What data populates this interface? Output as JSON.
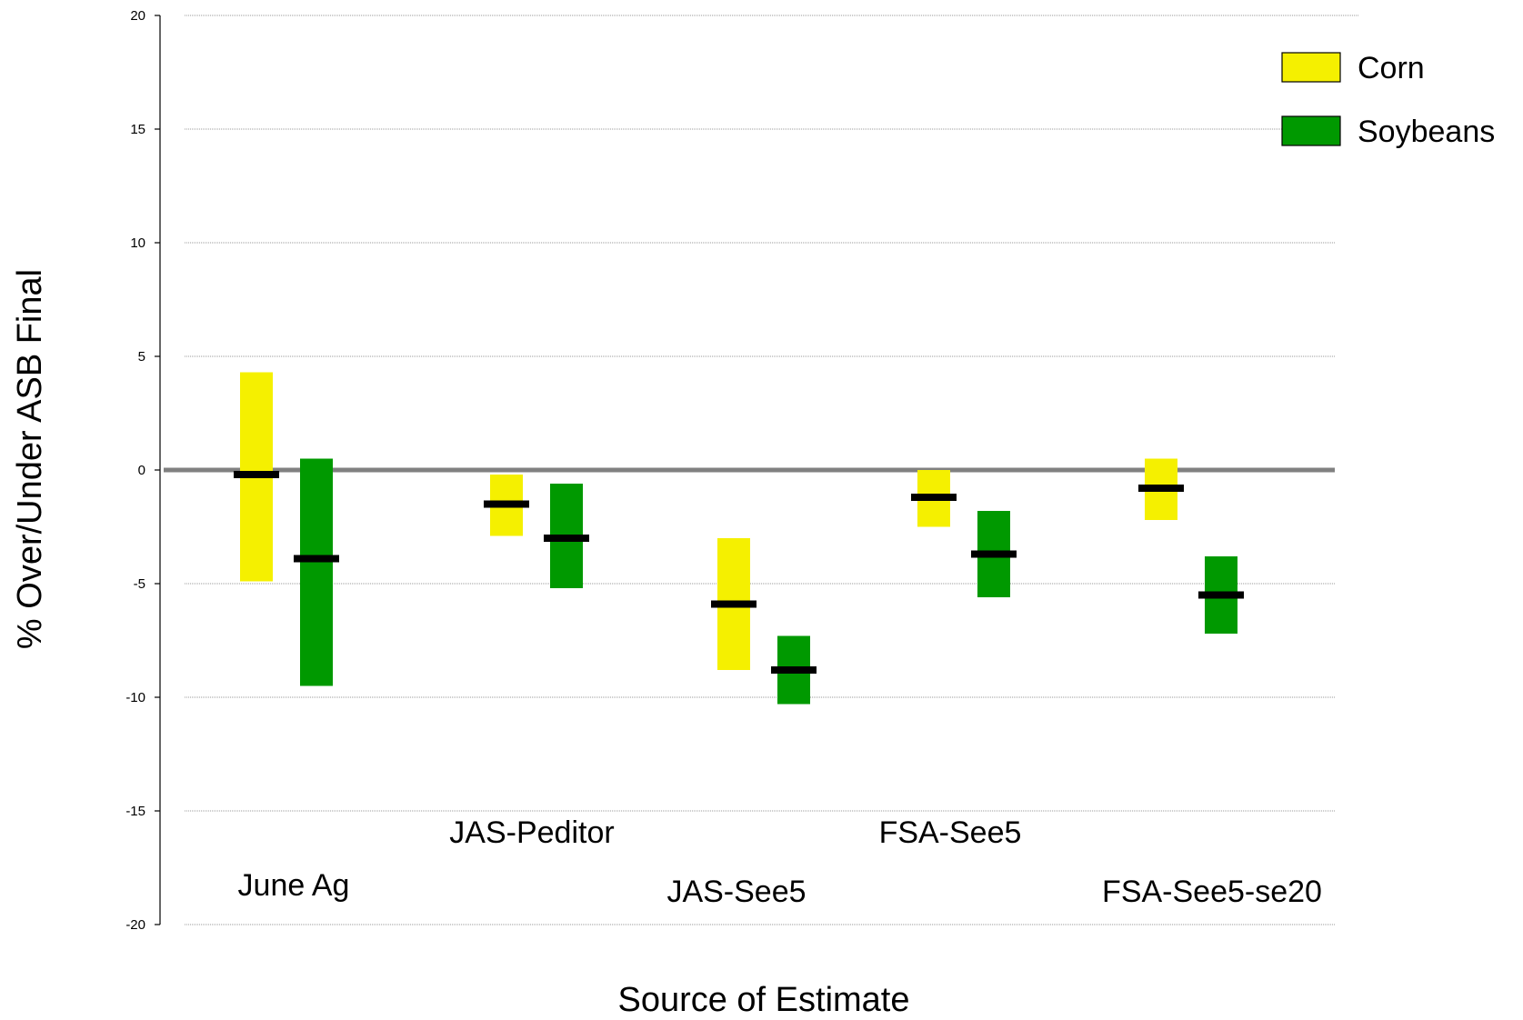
{
  "chart_data": {
    "type": "bar",
    "subtype": "floating-range",
    "xlabel": "Source of Estimate",
    "ylabel": "% Over/Under ASB Final",
    "ylim": [
      -20,
      20
    ],
    "yticks": [
      20,
      15,
      10,
      5,
      0,
      -5,
      -10,
      -15,
      -20
    ],
    "grid": true,
    "legend_position": "top-right",
    "categories": [
      "June Ag",
      "JAS-Peditor",
      "JAS-See5",
      "FSA-See5",
      "FSA-See5-se20"
    ],
    "series": [
      {
        "name": "Corn",
        "color": "#f5f000",
        "low": [
          -4.9,
          -2.9,
          -8.8,
          -2.5,
          -2.2
        ],
        "high": [
          4.3,
          -0.2,
          -3.0,
          0.0,
          0.5
        ],
        "mid": [
          -0.2,
          -1.5,
          -5.9,
          -1.2,
          -0.8
        ]
      },
      {
        "name": "Soybeans",
        "color": "#009900",
        "low": [
          -9.5,
          -5.2,
          -10.3,
          -5.6,
          -7.2
        ],
        "high": [
          0.5,
          -0.6,
          -7.3,
          -1.8,
          -3.8
        ],
        "mid": [
          -3.9,
          -3.0,
          -8.8,
          -3.7,
          -5.5
        ]
      }
    ]
  }
}
